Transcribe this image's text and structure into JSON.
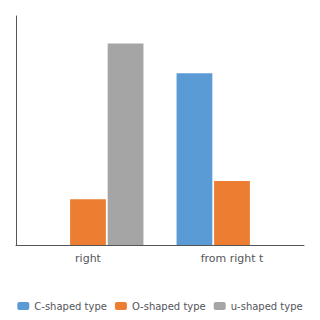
{
  "chart_data": {
    "type": "bar",
    "categories": [
      "right",
      "from right t"
    ],
    "series": [
      {
        "name": "C-shaped type",
        "color": "#5B9BD5",
        "values": [
          0,
          75
        ]
      },
      {
        "name": "O-shaped type",
        "color": "#ED7D31",
        "values": [
          20,
          28
        ]
      },
      {
        "name": "u-shaped type",
        "color": "#A5A5A5",
        "values": [
          88,
          0
        ]
      }
    ],
    "ylim": [
      0,
      100
    ],
    "grid": false,
    "legend": "bottom",
    "tick_labels": "x"
  }
}
